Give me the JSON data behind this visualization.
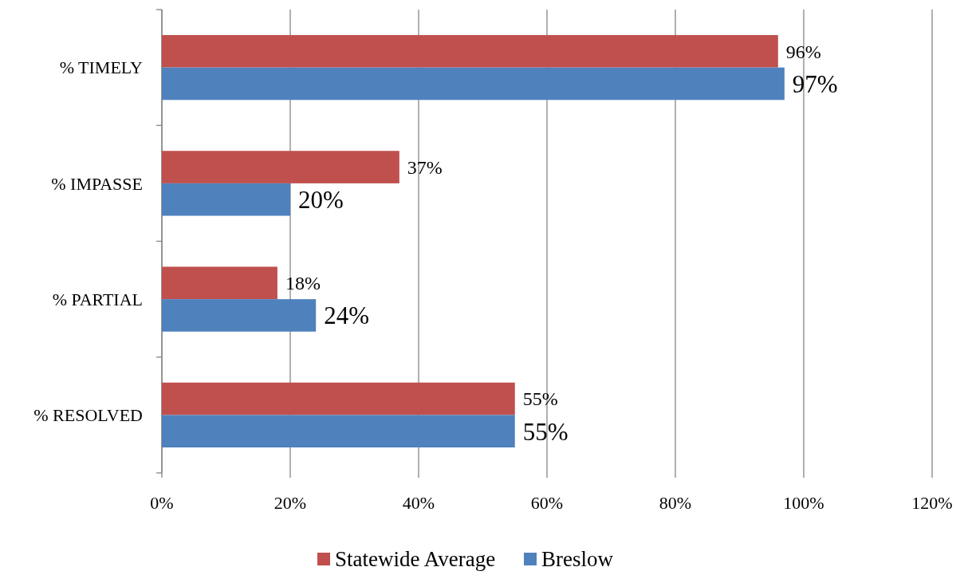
{
  "chart_data": {
    "type": "bar",
    "orientation": "horizontal",
    "categories": [
      "% TIMELY",
      "% IMPASSE",
      "% PARTIAL",
      "% RESOLVED"
    ],
    "series": [
      {
        "name": "Statewide Average",
        "color": "#c0504d",
        "values": [
          96,
          37,
          18,
          55
        ],
        "value_labels": [
          "96%",
          "37%",
          "18%",
          "55%"
        ]
      },
      {
        "name": "Breslow",
        "color": "#4f81bd",
        "values": [
          97,
          20,
          24,
          55
        ],
        "value_labels": [
          "97%",
          "20%",
          "24%",
          "55%"
        ]
      }
    ],
    "xlim": [
      0,
      120
    ],
    "xticks": [
      {
        "value": 0,
        "label": "0%"
      },
      {
        "value": 20,
        "label": "20%"
      },
      {
        "value": 40,
        "label": "40%"
      },
      {
        "value": 60,
        "label": "60%"
      },
      {
        "value": 80,
        "label": "80%"
      },
      {
        "value": 100,
        "label": "100%"
      },
      {
        "value": 120,
        "label": "120%"
      }
    ],
    "grid": "x",
    "legend": "bottom"
  }
}
